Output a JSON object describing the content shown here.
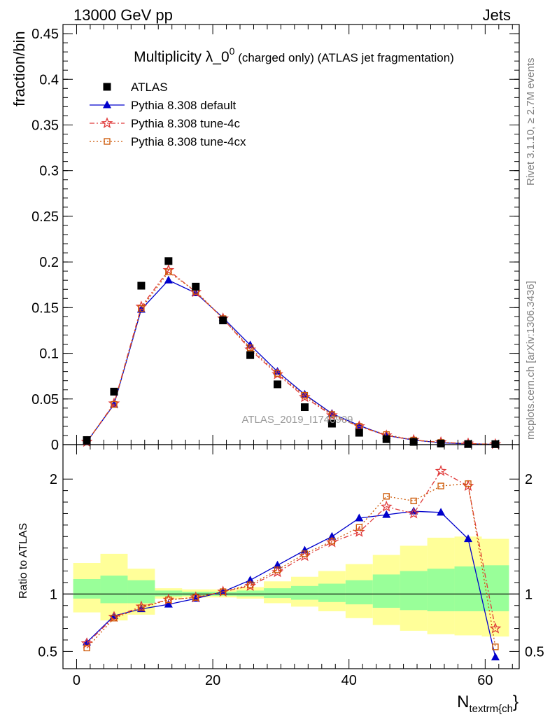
{
  "header": {
    "energy_label": "13000 GeV pp",
    "process_label": "Jets"
  },
  "side_text": {
    "rivet": "Rivet 3.1.10, ≥ 2.7M events",
    "mcplots": "mcplots.cern.ch [arXiv:1306.3436]"
  },
  "watermark": "ATLAS_2019_I1740909",
  "chart_data": [
    {
      "type": "line",
      "title_main": "Multiplicity λ_0",
      "title_sup": "0",
      "title_rest": " (charged only) (ATLAS jet fragmentation)",
      "ylabel": "fraction/bin",
      "xlim": [
        -2,
        65
      ],
      "ylim": [
        0,
        0.46
      ],
      "yticks": [
        "0",
        "0.05",
        "0.1",
        "0.15",
        "0.2",
        "0.25",
        "0.3",
        "0.35",
        "0.4",
        "0.45"
      ],
      "legend_position": "top-left",
      "x": [
        1.5,
        5.5,
        9.5,
        13.5,
        17.5,
        21.5,
        25.5,
        29.5,
        33.5,
        37.5,
        41.5,
        45.5,
        49.5,
        53.5,
        57.5,
        61.5
      ],
      "series": [
        {
          "name": "ATLAS",
          "color": "#000000",
          "marker": "square",
          "values": [
            0.005,
            0.058,
            0.174,
            0.201,
            0.173,
            0.136,
            0.098,
            0.066,
            0.041,
            0.023,
            0.013,
            0.006,
            0.003,
            0.0012,
            0.0006,
            0.0005
          ]
        },
        {
          "name": "Pythia 8.308 default",
          "color": "#0000cc",
          "marker": "triangle",
          "values": [
            0.003,
            0.044,
            0.148,
            0.18,
            0.166,
            0.139,
            0.109,
            0.08,
            0.055,
            0.034,
            0.021,
            0.01,
            0.005,
            0.002,
            0.0009,
            0.0002
          ]
        },
        {
          "name": "Pythia 8.308 tune-4c",
          "color": "#e03c3c",
          "marker": "star",
          "values": [
            0.003,
            0.045,
            0.151,
            0.191,
            0.167,
            0.138,
            0.104,
            0.077,
            0.052,
            0.032,
            0.02,
            0.01,
            0.005,
            0.0025,
            0.0012,
            0.0004
          ]
        },
        {
          "name": "Pythia 8.308 tune-4cx",
          "color": "#cc5500",
          "marker": "open-square",
          "values": [
            0.003,
            0.044,
            0.149,
            0.189,
            0.168,
            0.138,
            0.106,
            0.078,
            0.054,
            0.033,
            0.02,
            0.011,
            0.005,
            0.0024,
            0.0011,
            0.0003
          ]
        }
      ]
    },
    {
      "type": "line",
      "ylabel": "Ratio to ATLAS",
      "xlabel_main": "N",
      "xlabel_sub": "textrm{ch",
      "xlabel_close": "}",
      "xlim": [
        -2,
        65
      ],
      "ylim": [
        0.35,
        2.3
      ],
      "ytick_values": [
        0.5,
        1,
        2
      ],
      "ytick_labels": [
        "0.5",
        "1",
        "2"
      ],
      "xtick_values": [
        0,
        20,
        40,
        60
      ],
      "xtick_labels": [
        "0",
        "20",
        "40",
        "60"
      ],
      "bin_edges": [
        -0.5,
        3.5,
        7.5,
        11.5,
        15.5,
        19.5,
        23.5,
        27.5,
        31.5,
        35.5,
        39.5,
        43.5,
        47.5,
        51.5,
        55.5,
        59.5,
        63.5
      ],
      "stat_band_lo": [
        0.96,
        0.92,
        0.92,
        0.98,
        0.985,
        0.985,
        0.98,
        0.965,
        0.95,
        0.93,
        0.91,
        0.88,
        0.86,
        0.85,
        0.85,
        0.85
      ],
      "stat_band_hi": [
        1.13,
        1.16,
        1.12,
        1.03,
        1.02,
        1.02,
        1.03,
        1.05,
        1.07,
        1.09,
        1.12,
        1.17,
        1.2,
        1.22,
        1.24,
        1.25
      ],
      "total_band_lo": [
        0.84,
        0.77,
        0.82,
        0.96,
        0.97,
        0.97,
        0.96,
        0.92,
        0.89,
        0.85,
        0.79,
        0.73,
        0.68,
        0.65,
        0.64,
        0.63
      ],
      "total_band_hi": [
        1.27,
        1.35,
        1.22,
        1.05,
        1.04,
        1.04,
        1.06,
        1.11,
        1.15,
        1.2,
        1.26,
        1.34,
        1.42,
        1.49,
        1.5,
        1.48
      ],
      "x": [
        1.5,
        5.5,
        9.5,
        13.5,
        17.5,
        21.5,
        25.5,
        29.5,
        33.5,
        37.5,
        41.5,
        45.5,
        49.5,
        53.5,
        57.5,
        61.5
      ],
      "series": [
        {
          "name": "Pythia 8.308 default",
          "color": "#0000cc",
          "marker": "triangle",
          "values": [
            0.58,
            0.81,
            0.87,
            0.91,
            0.96,
            1.02,
            1.12,
            1.25,
            1.38,
            1.5,
            1.66,
            1.69,
            1.72,
            1.71,
            1.48,
            0.45
          ]
        },
        {
          "name": "Pythia 8.308 tune-4c",
          "color": "#e03c3c",
          "marker": "star",
          "values": [
            0.57,
            0.8,
            0.89,
            0.95,
            0.97,
            1.02,
            1.07,
            1.19,
            1.33,
            1.45,
            1.54,
            1.76,
            1.7,
            2.07,
            1.94,
            0.7
          ]
        },
        {
          "name": "Pythia 8.308 tune-4cx",
          "color": "#cc5500",
          "marker": "open-square",
          "values": [
            0.53,
            0.79,
            0.88,
            0.95,
            0.97,
            1.02,
            1.08,
            1.21,
            1.35,
            1.46,
            1.58,
            1.85,
            1.81,
            1.94,
            1.96,
            0.54
          ]
        }
      ]
    }
  ]
}
